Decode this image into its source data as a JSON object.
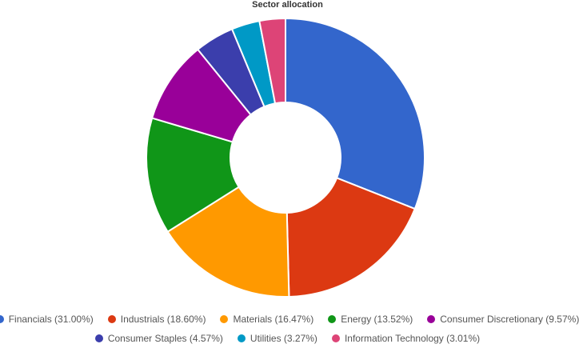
{
  "chart_data": {
    "type": "pie",
    "donut": true,
    "title": "Sector allocation",
    "legend_position": "bottom",
    "slices": [
      {
        "label": "Financials",
        "value": 31.0,
        "legend": "Financials (31.00%)",
        "color": "#3366cc"
      },
      {
        "label": "Industrials",
        "value": 18.6,
        "legend": "Industrials (18.60%)",
        "color": "#dc3912"
      },
      {
        "label": "Materials",
        "value": 16.47,
        "legend": "Materials (16.47%)",
        "color": "#ff9900"
      },
      {
        "label": "Energy",
        "value": 13.52,
        "legend": "Energy (13.52%)",
        "color": "#109618"
      },
      {
        "label": "Consumer Discretionary",
        "value": 9.57,
        "legend": "Consumer Discretionary (9.57%)",
        "color": "#990099"
      },
      {
        "label": "Consumer Staples",
        "value": 4.57,
        "legend": "Consumer Staples (4.57%)",
        "color": "#3b3eac"
      },
      {
        "label": "Utilities",
        "value": 3.27,
        "legend": "Utilities (3.27%)",
        "color": "#0099c6"
      },
      {
        "label": "Information Technology",
        "value": 3.01,
        "legend": "Information Technology (3.01%)",
        "color": "#dd4477"
      }
    ]
  }
}
